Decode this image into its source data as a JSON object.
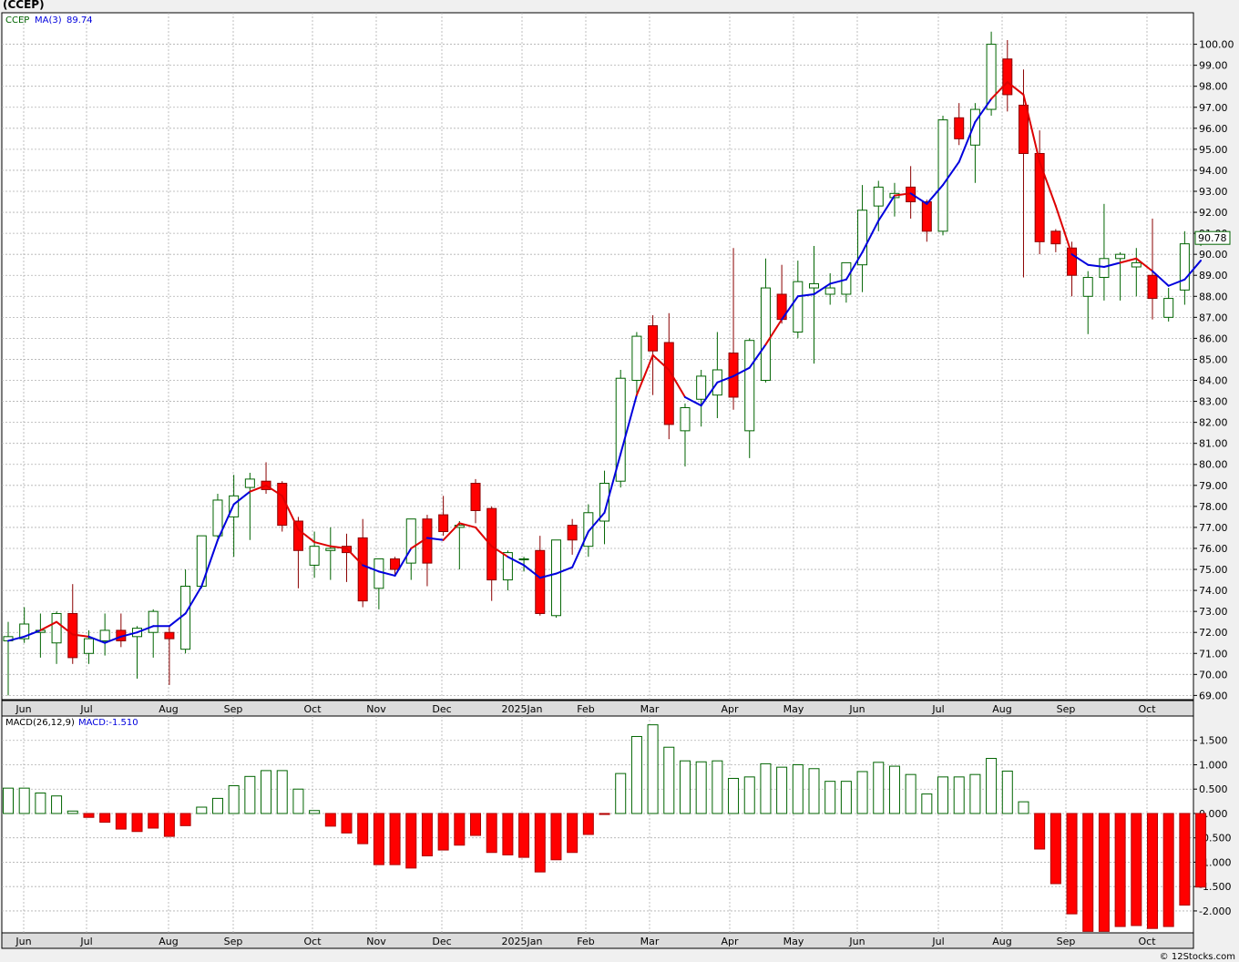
{
  "title": "(CCEP)",
  "credit": "© 12Stocks.com",
  "colors": {
    "up": "#006400",
    "down": "#ff0000",
    "ma_up": "#0000dd",
    "ma_down": "#dd0000",
    "grid": "#b0b0b0",
    "panel_bg": "#ffffff",
    "page_bg": "#f0f0f0"
  },
  "chart_data": [
    {
      "type": "candlestick",
      "ticker_label": "CCEP",
      "ma_label": "MA(3)",
      "ma_value": "89.74",
      "last_price": "90.78",
      "ylim": [
        68.8,
        101.5
      ],
      "y_ticks": [
        "69.00",
        "70.00",
        "71.00",
        "72.00",
        "73.00",
        "74.00",
        "75.00",
        "76.00",
        "77.00",
        "78.00",
        "79.00",
        "80.00",
        "81.00",
        "82.00",
        "83.00",
        "84.00",
        "85.00",
        "86.00",
        "87.00",
        "88.00",
        "89.00",
        "90.00",
        "91.00",
        "92.00",
        "93.00",
        "94.00",
        "95.00",
        "96.00",
        "97.00",
        "98.00",
        "99.00",
        "100.00"
      ],
      "x_labels": [
        "Jun",
        "Jul",
        "Aug",
        "Sep",
        "Oct",
        "Nov",
        "Dec",
        "2025Jan",
        "Feb",
        "Mar",
        "Apr",
        "May",
        "Jun",
        "Jul",
        "Aug",
        "Sep",
        "Oct"
      ],
      "candles": [
        [
          71.6,
          72.5,
          69.0,
          71.8
        ],
        [
          71.7,
          73.2,
          71.5,
          72.4
        ],
        [
          72.0,
          72.9,
          70.8,
          72.1
        ],
        [
          71.5,
          73.0,
          70.5,
          72.9
        ],
        [
          72.9,
          74.3,
          70.5,
          70.8
        ],
        [
          71.0,
          72.1,
          70.5,
          71.7
        ],
        [
          71.6,
          72.9,
          70.9,
          72.1
        ],
        [
          72.1,
          72.9,
          71.3,
          71.6
        ],
        [
          71.8,
          72.3,
          69.8,
          72.2
        ],
        [
          72.0,
          73.1,
          70.8,
          73.0
        ],
        [
          72.0,
          72.3,
          69.5,
          71.7
        ],
        [
          71.2,
          75.0,
          71.0,
          74.2
        ],
        [
          74.2,
          76.6,
          74.1,
          76.6
        ],
        [
          76.6,
          78.6,
          76.5,
          78.3
        ],
        [
          77.5,
          79.5,
          75.6,
          78.5
        ],
        [
          78.9,
          79.6,
          76.4,
          79.3
        ],
        [
          79.2,
          80.1,
          78.6,
          78.8
        ],
        [
          79.1,
          79.2,
          76.8,
          77.1
        ],
        [
          77.3,
          77.5,
          74.1,
          75.9
        ],
        [
          75.2,
          76.8,
          74.6,
          76.1
        ],
        [
          75.9,
          77.0,
          74.5,
          76.0
        ],
        [
          76.1,
          76.7,
          74.4,
          75.8
        ],
        [
          76.5,
          77.4,
          73.2,
          73.5
        ],
        [
          74.1,
          75.5,
          73.1,
          75.5
        ],
        [
          75.5,
          75.6,
          74.7,
          75.0
        ],
        [
          75.3,
          77.3,
          74.5,
          77.4
        ],
        [
          77.4,
          77.6,
          74.2,
          75.3
        ],
        [
          77.6,
          78.5,
          76.6,
          76.8
        ],
        [
          77.0,
          77.3,
          75.0,
          77.1
        ],
        [
          79.1,
          79.3,
          77.2,
          77.8
        ],
        [
          77.9,
          78.0,
          73.5,
          74.5
        ],
        [
          74.5,
          75.9,
          74.0,
          75.8
        ],
        [
          75.5,
          75.6,
          74.9,
          75.5
        ],
        [
          75.9,
          76.6,
          72.8,
          72.9
        ],
        [
          72.8,
          76.3,
          72.7,
          76.4
        ],
        [
          77.1,
          77.4,
          75.7,
          76.4
        ],
        [
          76.1,
          78.1,
          75.6,
          77.7
        ],
        [
          77.3,
          79.7,
          76.2,
          79.1
        ],
        [
          79.2,
          84.5,
          78.9,
          84.1
        ],
        [
          84.0,
          86.3,
          83.3,
          86.1
        ],
        [
          86.6,
          87.1,
          83.3,
          85.4
        ],
        [
          85.8,
          87.2,
          81.2,
          81.9
        ],
        [
          81.6,
          82.9,
          79.9,
          82.7
        ],
        [
          83.1,
          84.5,
          81.8,
          84.2
        ],
        [
          83.3,
          86.3,
          82.2,
          84.5
        ],
        [
          85.3,
          90.3,
          82.6,
          83.2
        ],
        [
          81.6,
          86.0,
          80.3,
          85.9
        ],
        [
          84.0,
          89.8,
          83.9,
          88.4
        ],
        [
          88.1,
          89.5,
          86.7,
          86.9
        ],
        [
          86.3,
          89.7,
          86.0,
          88.7
        ],
        [
          88.4,
          90.4,
          84.8,
          88.6
        ],
        [
          88.1,
          89.1,
          87.6,
          88.4
        ],
        [
          88.1,
          89.4,
          87.7,
          89.6
        ],
        [
          89.5,
          93.3,
          88.2,
          92.1
        ],
        [
          92.3,
          93.5,
          91.1,
          93.2
        ],
        [
          92.7,
          93.4,
          91.8,
          92.9
        ],
        [
          93.2,
          94.2,
          91.7,
          92.5
        ],
        [
          92.5,
          92.6,
          90.6,
          91.1
        ],
        [
          91.1,
          96.6,
          90.9,
          96.4
        ],
        [
          96.5,
          97.2,
          95.2,
          95.5
        ],
        [
          95.2,
          97.2,
          93.4,
          96.9
        ],
        [
          96.9,
          100.6,
          96.6,
          100.0
        ],
        [
          99.3,
          100.2,
          96.8,
          97.6
        ],
        [
          97.1,
          98.8,
          88.9,
          94.8
        ],
        [
          94.8,
          95.9,
          90.0,
          90.6
        ],
        [
          91.1,
          91.2,
          90.1,
          90.5
        ],
        [
          90.3,
          90.6,
          88.0,
          89.0
        ],
        [
          88.0,
          89.2,
          86.2,
          88.9
        ],
        [
          88.9,
          92.4,
          87.8,
          89.8
        ],
        [
          89.8,
          90.1,
          87.8,
          90.0
        ],
        [
          89.4,
          90.3,
          88.0,
          89.6
        ],
        [
          89.0,
          91.7,
          86.9,
          87.9
        ],
        [
          87.0,
          88.4,
          86.8,
          87.9
        ],
        [
          88.3,
          91.1,
          87.6,
          90.5
        ],
        [
          90.6,
          91.0,
          90.4,
          90.8
        ]
      ],
      "ma": [
        71.6,
        71.8,
        72.1,
        72.5,
        71.9,
        71.8,
        71.5,
        71.8,
        72.0,
        72.3,
        72.3,
        72.9,
        74.2,
        76.4,
        78.1,
        78.7,
        79.0,
        78.5,
        76.9,
        76.3,
        76.1,
        76.0,
        75.2,
        74.9,
        74.7,
        76.0,
        76.5,
        76.4,
        77.2,
        77.0,
        76.1,
        75.6,
        75.2,
        74.6,
        74.8,
        75.1,
        76.8,
        77.7,
        80.5,
        83.3,
        85.2,
        84.5,
        83.2,
        82.8,
        83.9,
        84.2,
        84.6,
        85.7,
        86.9,
        88.0,
        88.1,
        88.6,
        88.8,
        90.1,
        91.6,
        92.8,
        92.9,
        92.4,
        93.3,
        94.4,
        96.3,
        97.4,
        98.2,
        97.6,
        94.4,
        92.3,
        90.0,
        89.5,
        89.4,
        89.6,
        89.8,
        89.2,
        88.5,
        88.8,
        89.7
      ],
      "ma_trend_down": [
        false,
        false,
        false,
        true,
        true,
        true,
        false,
        false,
        false,
        false,
        false,
        false,
        false,
        false,
        false,
        false,
        true,
        true,
        true,
        true,
        true,
        true,
        true,
        false,
        false,
        false,
        true,
        false,
        true,
        true,
        true,
        true,
        false,
        false,
        false,
        false,
        false,
        false,
        false,
        false,
        true,
        true,
        true,
        false,
        false,
        false,
        false,
        false,
        true,
        false,
        false,
        false,
        false,
        false,
        false,
        false,
        true,
        false,
        false,
        false,
        false,
        false,
        true,
        true,
        true,
        true,
        true,
        false,
        false,
        false,
        true,
        true,
        false,
        false,
        false
      ]
    },
    {
      "type": "bar",
      "name": "MACD(26,12,9)",
      "value_label": "MACD:-1.510",
      "ylim": [
        -2.45,
        2.0
      ],
      "y_ticks": [
        "-2.000",
        "-1.500",
        "-1.000",
        "-0.500",
        "0.000",
        "0.500",
        "1.000",
        "1.500"
      ],
      "x_labels": [
        "Jun",
        "Jul",
        "Aug",
        "Sep",
        "Oct",
        "Nov",
        "Dec",
        "2025Jan",
        "Feb",
        "Mar",
        "Apr",
        "May",
        "Jun",
        "Jul",
        "Aug",
        "Sep",
        "Oct"
      ],
      "values": [
        0.52,
        0.52,
        0.42,
        0.36,
        0.05,
        -0.08,
        -0.18,
        -0.32,
        -0.37,
        -0.3,
        -0.47,
        -0.25,
        0.13,
        0.31,
        0.57,
        0.76,
        0.88,
        0.88,
        0.5,
        0.06,
        -0.26,
        -0.4,
        -0.62,
        -1.05,
        -1.05,
        -1.12,
        -0.87,
        -0.75,
        -0.65,
        -0.45,
        -0.8,
        -0.85,
        -0.9,
        -1.2,
        -0.95,
        -0.8,
        -0.43,
        -0.02,
        0.82,
        1.58,
        1.82,
        1.36,
        1.08,
        1.06,
        1.08,
        0.72,
        0.75,
        1.02,
        0.95,
        1.0,
        0.92,
        0.66,
        0.66,
        0.86,
        1.05,
        0.97,
        0.8,
        0.4,
        0.75,
        0.75,
        0.8,
        1.13,
        0.87,
        0.24,
        -0.73,
        -1.44,
        -2.06,
        -2.42,
        -2.42,
        -2.32,
        -2.3,
        -2.36,
        -2.32,
        -1.88,
        -1.51
      ]
    }
  ]
}
